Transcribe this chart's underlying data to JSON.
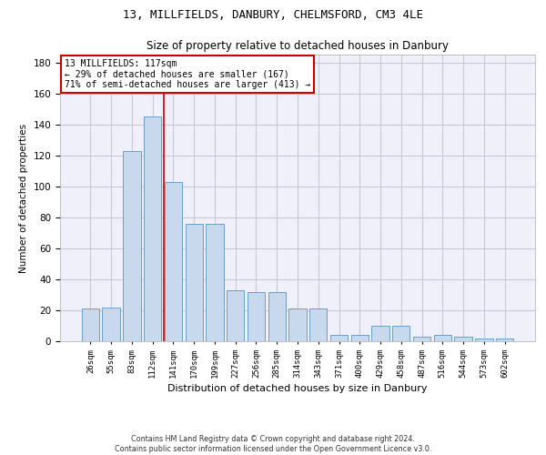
{
  "title": "13, MILLFIELDS, DANBURY, CHELMSFORD, CM3 4LE",
  "subtitle": "Size of property relative to detached houses in Danbury",
  "xlabel": "Distribution of detached houses by size in Danbury",
  "ylabel": "Number of detached properties",
  "bar_color": "#c8d9ee",
  "bar_edge_color": "#6b9ec8",
  "bin_labels": [
    "26sqm",
    "55sqm",
    "83sqm",
    "112sqm",
    "141sqm",
    "170sqm",
    "199sqm",
    "227sqm",
    "256sqm",
    "285sqm",
    "314sqm",
    "343sqm",
    "371sqm",
    "400sqm",
    "429sqm",
    "458sqm",
    "487sqm",
    "516sqm",
    "544sqm",
    "573sqm",
    "602sqm"
  ],
  "bar_heights": [
    21,
    22,
    123,
    145,
    103,
    76,
    76,
    33,
    32,
    32,
    21,
    21,
    4,
    4,
    10,
    10,
    3,
    4,
    3,
    2,
    2
  ],
  "ylim": [
    0,
    185
  ],
  "yticks": [
    0,
    20,
    40,
    60,
    80,
    100,
    120,
    140,
    160,
    180
  ],
  "property_line_x": 3.55,
  "annotation_text": "13 MILLFIELDS: 117sqm\n← 29% of detached houses are smaller (167)\n71% of semi-detached houses are larger (413) →",
  "annotation_box_color": "#ffffff",
  "annotation_box_edge_color": "#cc0000",
  "footer_text": "Contains HM Land Registry data © Crown copyright and database right 2024.\nContains public sector information licensed under the Open Government Licence v3.0.",
  "property_line_color": "#cc0000",
  "grid_color": "#c8c8d8",
  "background_color": "#f0f0fa",
  "title_fontsize": 9,
  "subtitle_fontsize": 8.5
}
